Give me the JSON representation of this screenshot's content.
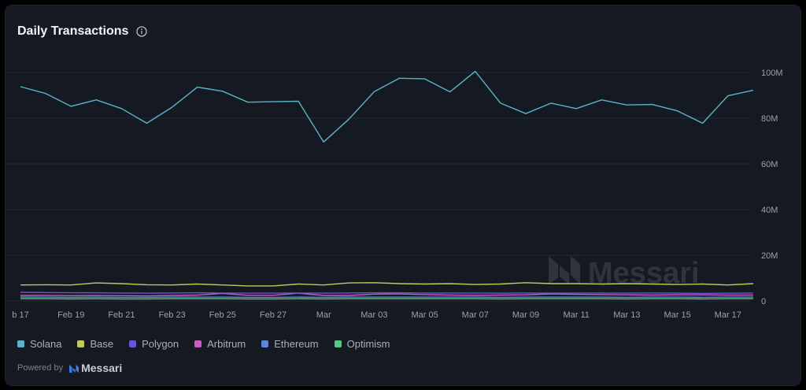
{
  "header": {
    "title": "Daily Transactions",
    "info_icon": "info-circle-icon"
  },
  "watermark": {
    "brand": "Messari"
  },
  "powered_by": {
    "label": "Powered by",
    "brand": "Messari"
  },
  "chart_data": {
    "type": "line",
    "title": "Daily Transactions",
    "x_tick_labels": [
      "b 17",
      "Feb 19",
      "Feb 21",
      "Feb 23",
      "Feb 25",
      "Feb 27",
      "Mar",
      "Mar 03",
      "Mar 05",
      "Mar 07",
      "Mar 09",
      "Mar 11",
      "Mar 13",
      "Mar 15",
      "Mar 17"
    ],
    "x": [
      "Feb 17",
      "Feb 18",
      "Feb 19",
      "Feb 20",
      "Feb 21",
      "Feb 22",
      "Feb 23",
      "Feb 24",
      "Feb 25",
      "Feb 26",
      "Feb 27",
      "Feb 28",
      "Mar 01",
      "Mar 02",
      "Mar 03",
      "Mar 04",
      "Mar 05",
      "Mar 06",
      "Mar 07",
      "Mar 08",
      "Mar 09",
      "Mar 10",
      "Mar 11",
      "Mar 12",
      "Mar 13",
      "Mar 14",
      "Mar 15",
      "Mar 16",
      "Mar 17",
      "Mar 18"
    ],
    "y_ticks": [
      {
        "value": 0,
        "label": "0"
      },
      {
        "value": 20000000,
        "label": "20M"
      },
      {
        "value": 40000000,
        "label": "40M"
      },
      {
        "value": 60000000,
        "label": "60M"
      },
      {
        "value": 80000000,
        "label": "80M"
      },
      {
        "value": 100000000,
        "label": "100M"
      }
    ],
    "ylim": [
      0,
      100000000
    ],
    "grid": true,
    "legend_position": "bottom-left",
    "series": [
      {
        "name": "Solana",
        "color": "#5ab4c8",
        "values": [
          93800000,
          90800000,
          85200000,
          88000000,
          84200000,
          77800000,
          84800000,
          93600000,
          91800000,
          87000000,
          87200000,
          87400000,
          69600000,
          79600000,
          91600000,
          97500000,
          97200000,
          91500000,
          100500000,
          86600000,
          82000000,
          86600000,
          84200000,
          88000000,
          85800000,
          86000000,
          83200000,
          77800000,
          89800000,
          92200000
        ]
      },
      {
        "name": "Base",
        "color": "#c0cc5c",
        "values": [
          7000000,
          7100000,
          7000000,
          7900000,
          7600000,
          7100000,
          7000000,
          7400000,
          7000000,
          6600000,
          6600000,
          7400000,
          7000000,
          7900000,
          8000000,
          7600000,
          7400000,
          7600000,
          7200000,
          7400000,
          8000000,
          7600000,
          7600000,
          7400000,
          7600000,
          7400000,
          7200000,
          7400000,
          7000000,
          7600000
        ]
      },
      {
        "name": "Polygon",
        "color": "#6a55d8",
        "values": [
          3800000,
          3700000,
          3600000,
          3600000,
          3500000,
          3400000,
          3500000,
          3600000,
          3500000,
          3400000,
          3400000,
          3500000,
          3400000,
          3500000,
          3600000,
          3600000,
          3500000,
          3500000,
          3500000,
          3400000,
          3500000,
          3400000,
          3500000,
          3500000,
          3400000,
          3500000,
          3400000,
          3300000,
          3400000,
          3500000
        ]
      },
      {
        "name": "Arbitrum",
        "color": "#c65ec0",
        "values": [
          2400000,
          2500000,
          2300000,
          2400000,
          2300000,
          2200000,
          2400000,
          2600000,
          3300000,
          2500000,
          2500000,
          3400000,
          2400000,
          2400000,
          3000000,
          3100000,
          2800000,
          2600000,
          2500000,
          2600000,
          2700000,
          3100000,
          2900000,
          2800000,
          2700000,
          2600000,
          2700000,
          2700000,
          2600000,
          2600000
        ]
      },
      {
        "name": "Ethereum",
        "color": "#5c86d8",
        "values": [
          1700000,
          1700000,
          1600000,
          1700000,
          1600000,
          1600000,
          1700000,
          1700000,
          1700000,
          1600000,
          1600000,
          1700000,
          1600000,
          1700000,
          1700000,
          1700000,
          1700000,
          1700000,
          1700000,
          1600000,
          1700000,
          1700000,
          1700000,
          1700000,
          1600000,
          1700000,
          1700000,
          1600000,
          1700000,
          1700000
        ]
      },
      {
        "name": "Optimism",
        "color": "#4fca7e",
        "values": [
          1000000,
          1000000,
          900000,
          1000000,
          900000,
          900000,
          1000000,
          1000000,
          1000000,
          900000,
          900000,
          1000000,
          900000,
          1000000,
          1000000,
          1000000,
          1000000,
          1000000,
          1000000,
          900000,
          1000000,
          1000000,
          1000000,
          1000000,
          900000,
          1000000,
          1000000,
          900000,
          1000000,
          1000000
        ]
      }
    ]
  }
}
